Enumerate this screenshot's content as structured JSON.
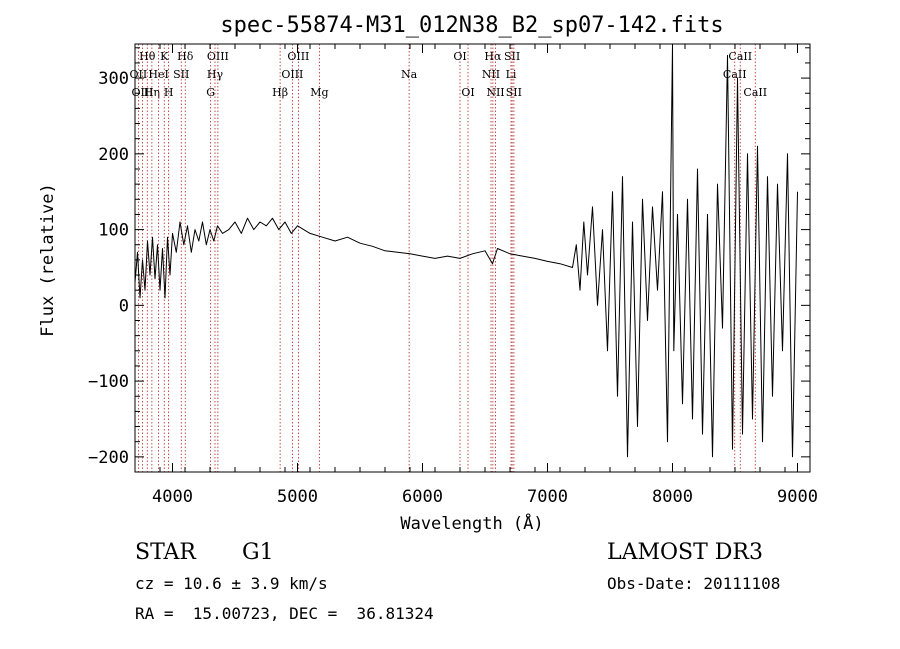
{
  "chart_data": {
    "type": "line",
    "title": "spec-55874-M31_012N38_B2_sp07-142.fits",
    "xlabel": "Wavelength (Å)",
    "ylabel": "Flux (relative)",
    "xlim": [
      3700,
      9100
    ],
    "ylim": [
      -220,
      345
    ],
    "xticks": [
      4000,
      5000,
      6000,
      7000,
      8000,
      9000
    ],
    "xtick_labels": [
      "4000",
      "5000",
      "6000",
      "7000",
      "8000",
      "9000"
    ],
    "yticks": [
      -200,
      -100,
      0,
      100,
      200,
      300
    ],
    "ytick_labels": [
      "−200",
      "−100",
      "0",
      "100",
      "200",
      "300"
    ],
    "line_color": "#000000",
    "marker_color": "#b22222",
    "series": [
      {
        "name": "flux",
        "x": [
          3700,
          3720,
          3740,
          3760,
          3780,
          3800,
          3820,
          3840,
          3860,
          3880,
          3900,
          3920,
          3940,
          3960,
          3980,
          4000,
          4030,
          4060,
          4090,
          4120,
          4150,
          4180,
          4210,
          4240,
          4270,
          4300,
          4330,
          4360,
          4400,
          4450,
          4500,
          4550,
          4600,
          4650,
          4700,
          4750,
          4800,
          4850,
          4900,
          4950,
          5000,
          5100,
          5200,
          5300,
          5400,
          5500,
          5600,
          5700,
          5800,
          5900,
          6000,
          6100,
          6200,
          6300,
          6400,
          6500,
          6560,
          6600,
          6700,
          6800,
          6900,
          7000,
          7100,
          7200,
          7230,
          7260,
          7290,
          7320,
          7360,
          7400,
          7440,
          7480,
          7520,
          7560,
          7600,
          7640,
          7680,
          7720,
          7760,
          7800,
          7840,
          7880,
          7920,
          7960,
          8000,
          8010,
          8040,
          8080,
          8120,
          8160,
          8200,
          8240,
          8280,
          8320,
          8360,
          8400,
          8440,
          8480,
          8520,
          8560,
          8600,
          8640,
          8680,
          8720,
          8760,
          8800,
          8840,
          8880,
          8920,
          8960,
          9000
        ],
        "y": [
          30,
          70,
          10,
          60,
          20,
          85,
          40,
          90,
          35,
          80,
          20,
          75,
          10,
          90,
          40,
          95,
          70,
          110,
          80,
          105,
          70,
          100,
          85,
          110,
          80,
          100,
          85,
          105,
          95,
          100,
          110,
          95,
          115,
          100,
          110,
          105,
          115,
          100,
          110,
          95,
          105,
          95,
          90,
          85,
          90,
          82,
          78,
          72,
          70,
          68,
          65,
          62,
          65,
          62,
          68,
          72,
          55,
          75,
          68,
          65,
          62,
          58,
          55,
          50,
          80,
          20,
          110,
          40,
          130,
          0,
          100,
          -60,
          150,
          -120,
          170,
          -200,
          110,
          -160,
          140,
          -20,
          130,
          20,
          150,
          -180,
          345,
          -60,
          120,
          -130,
          140,
          -150,
          180,
          -170,
          120,
          -200,
          160,
          -30,
          330,
          -190,
          300,
          -170,
          200,
          -150,
          210,
          -180,
          170,
          -120,
          160,
          -60,
          200,
          -200,
          150
        ]
      }
    ],
    "line_markers": [
      {
        "label": "Hθ",
        "x": 3798,
        "row": 1
      },
      {
        "label": "OII",
        "x": 3727,
        "row": 2
      },
      {
        "label": "OIII",
        "x": 3760,
        "row": 3
      },
      {
        "label": "Hη",
        "x": 3835,
        "row": 3
      },
      {
        "label": "K",
        "x": 3934,
        "row": 1
      },
      {
        "label": "HeI",
        "x": 3889,
        "row": 2
      },
      {
        "label": "H",
        "x": 3969,
        "row": 3
      },
      {
        "label": "Hδ",
        "x": 4102,
        "row": 1
      },
      {
        "label": "SII",
        "x": 4070,
        "row": 2
      },
      {
        "label": "OIII",
        "x": 4363,
        "row": 1
      },
      {
        "label": "Hγ",
        "x": 4340,
        "row": 2
      },
      {
        "label": "G",
        "x": 4305,
        "row": 3
      },
      {
        "label": "OIII",
        "x": 5007,
        "row": 1
      },
      {
        "label": "OIII",
        "x": 4959,
        "row": 2
      },
      {
        "label": "Hβ",
        "x": 4861,
        "row": 3
      },
      {
        "label": "Mg",
        "x": 5175,
        "row": 3
      },
      {
        "label": "Na",
        "x": 5893,
        "row": 2
      },
      {
        "label": "OI",
        "x": 6300,
        "row": 1
      },
      {
        "label": "OI",
        "x": 6364,
        "row": 3
      },
      {
        "label": "Hα",
        "x": 6563,
        "row": 1
      },
      {
        "label": "SII",
        "x": 6717,
        "row": 1
      },
      {
        "label": "NII",
        "x": 6548,
        "row": 2
      },
      {
        "label": "Li",
        "x": 6708,
        "row": 2
      },
      {
        "label": "NII",
        "x": 6584,
        "row": 3
      },
      {
        "label": "SII",
        "x": 6731,
        "row": 3
      },
      {
        "label": "CaII",
        "x": 8542,
        "row": 1
      },
      {
        "label": "CaII",
        "x": 8498,
        "row": 2
      },
      {
        "label": "CaII",
        "x": 8662,
        "row": 3
      }
    ]
  },
  "info": {
    "object_type": "STAR",
    "subclass": "G1",
    "survey": "LAMOST DR3",
    "cz": "cz = 10.6 ± 3.9 km/s",
    "obs_date": "Obs-Date: 20111108",
    "radec": "RA =  15.00723, DEC =  36.81324"
  }
}
